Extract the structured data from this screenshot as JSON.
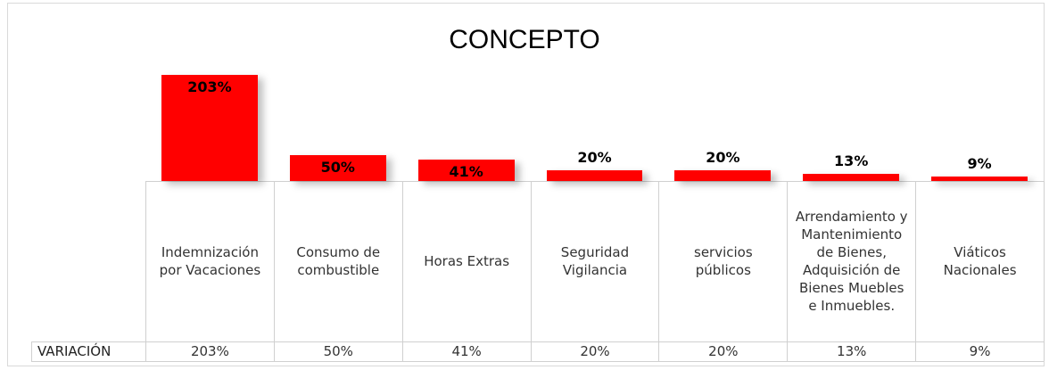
{
  "chart_data": {
    "type": "bar",
    "title": "CONCEPTO",
    "categories": [
      "Indemnización por Vacaciones",
      "Consumo de combustible",
      "Horas Extras",
      "Seguridad Vigilancia",
      "servicios públicos",
      "Arrendamiento y Mantenimiento de Bienes, Adquisición de Bienes Muebles e Inmuebles.",
      "Viáticos Nacionales"
    ],
    "values": [
      203,
      50,
      41,
      20,
      20,
      13,
      9
    ],
    "value_labels": [
      "203%",
      "50%",
      "41%",
      "20%",
      "20%",
      "13%",
      "9%"
    ],
    "color": "#ff0000",
    "table_row_label": "VARIACIÓN"
  }
}
